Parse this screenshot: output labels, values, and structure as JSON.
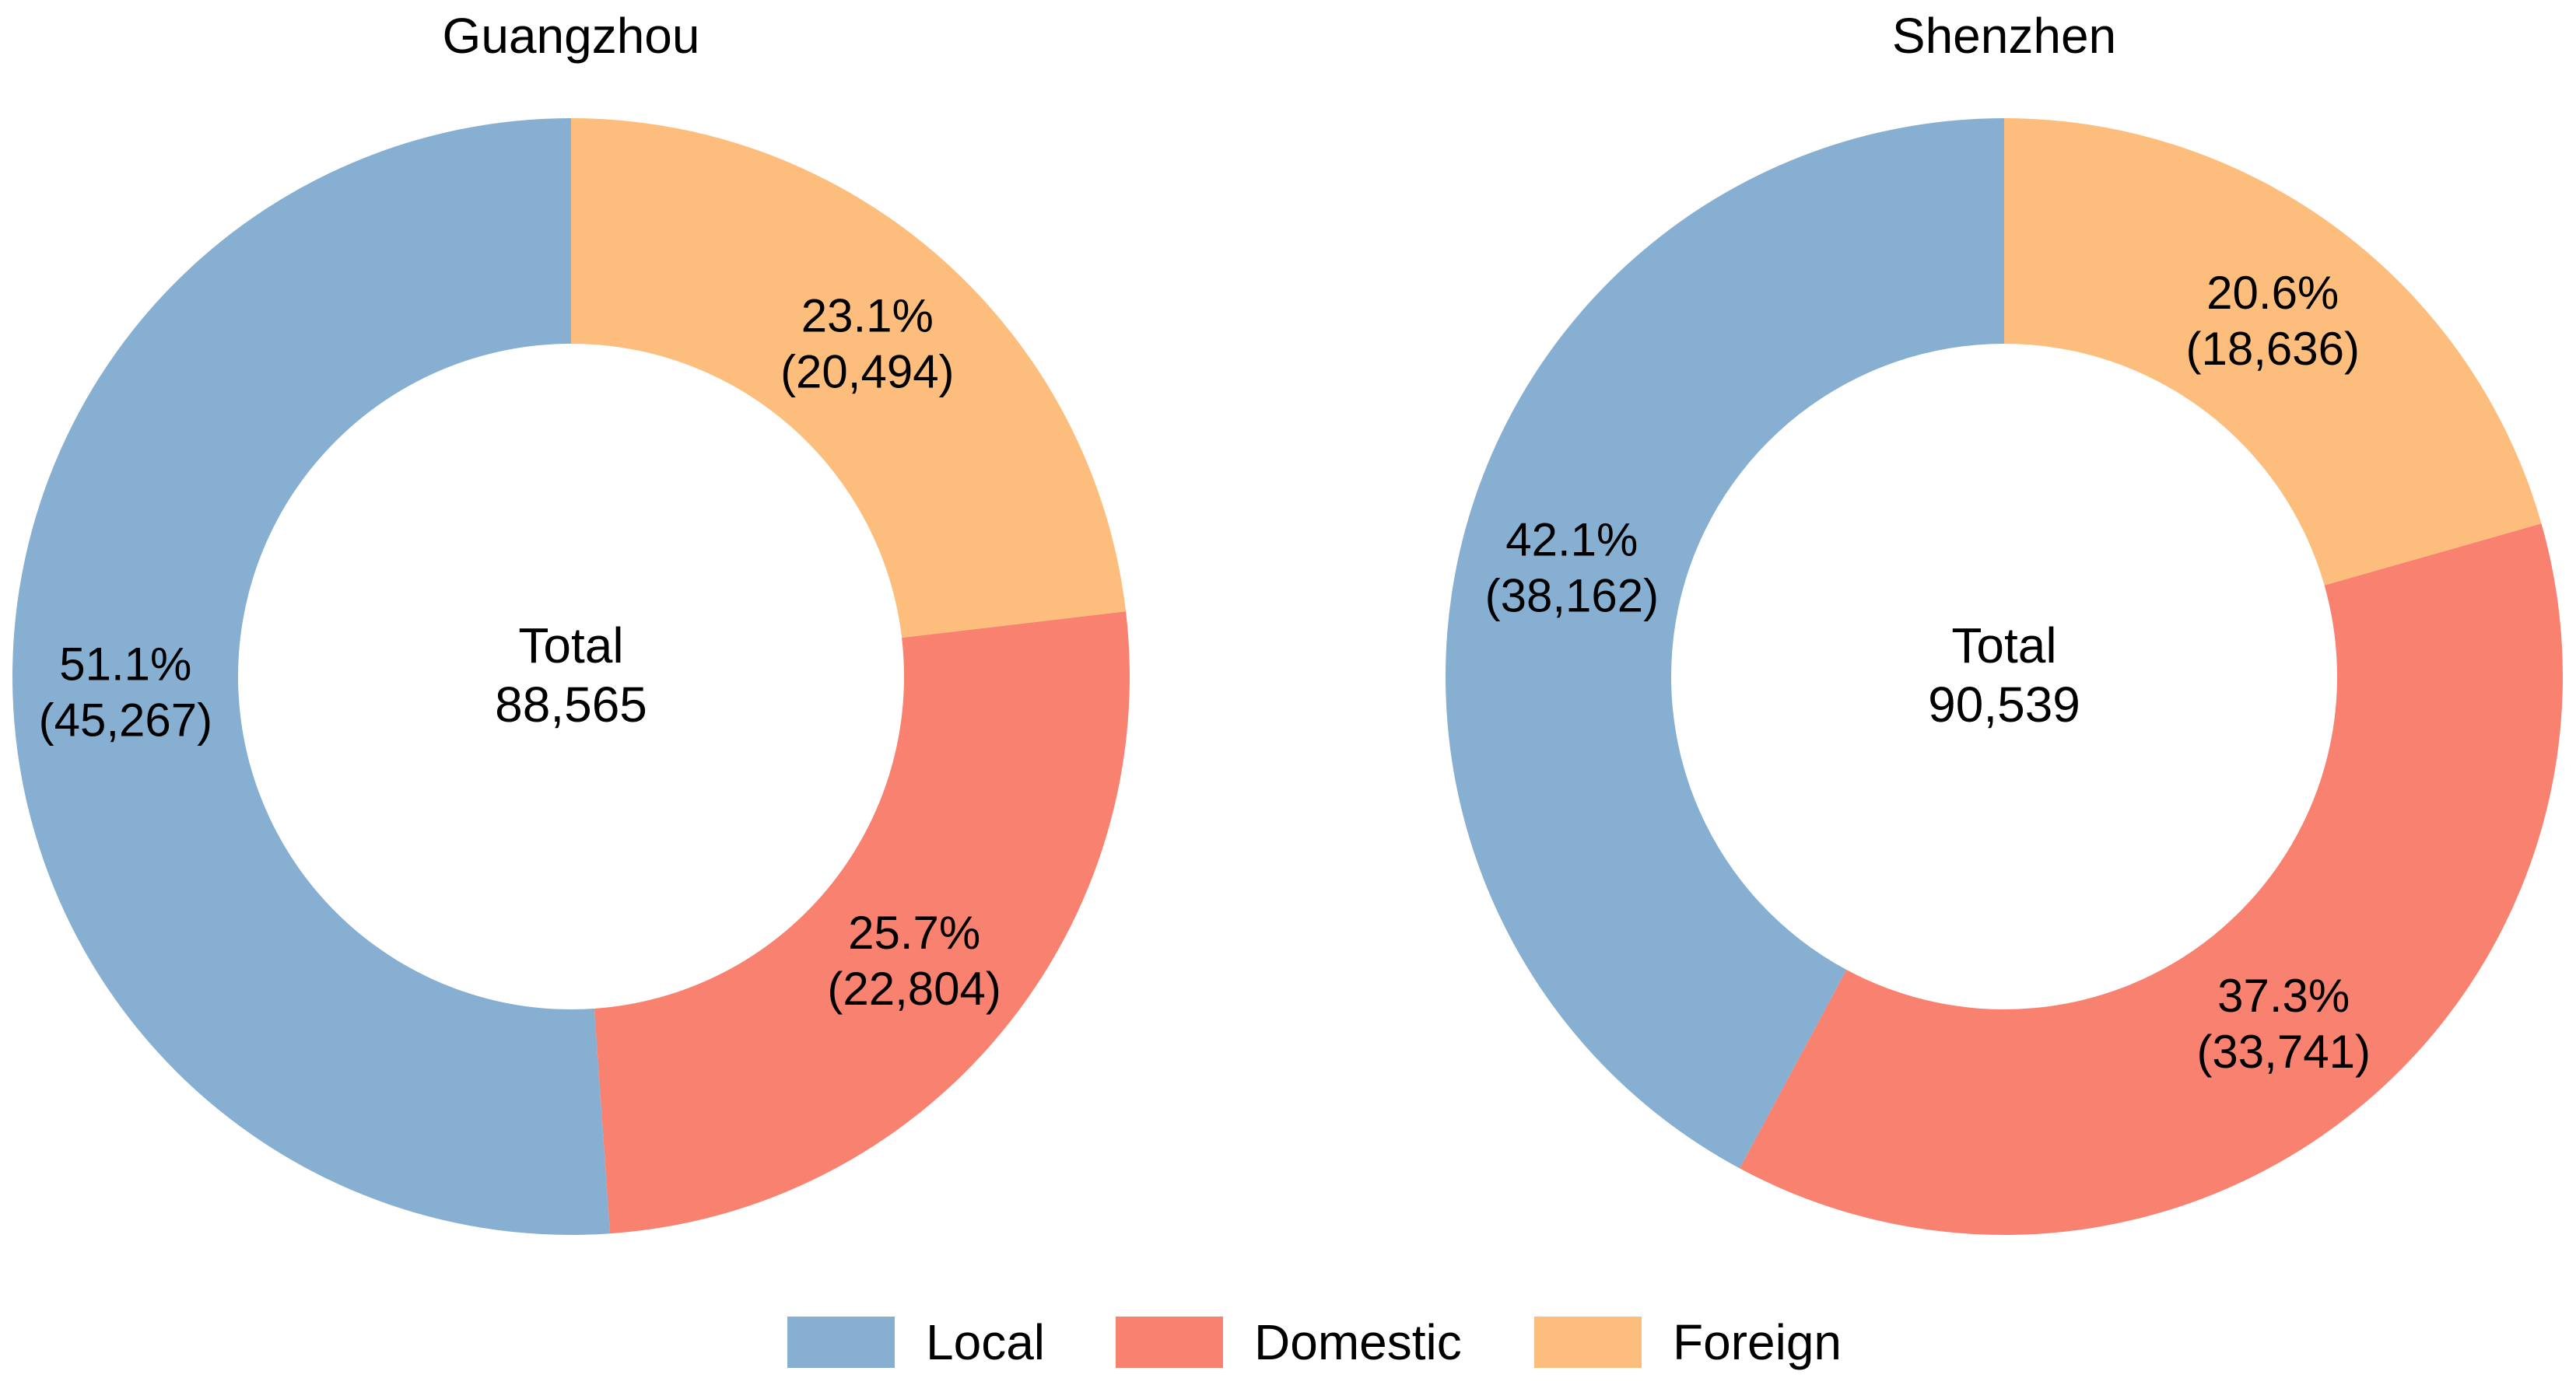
{
  "chart_data": [
    {
      "type": "pie",
      "title": "Guangzhou",
      "center_label": "Total",
      "total": "88,565",
      "slices": [
        {
          "name": "Local",
          "value": 45267,
          "value_label": "(45,267)",
          "percent_label": "51.1%"
        },
        {
          "name": "Domestic",
          "value": 22804,
          "value_label": "(22,804)",
          "percent_label": "25.7%"
        },
        {
          "name": "Foreign",
          "value": 20494,
          "value_label": "(20,494)",
          "percent_label": "23.1%"
        }
      ]
    },
    {
      "type": "pie",
      "title": "Shenzhen",
      "center_label": "Total",
      "total": "90,539",
      "slices": [
        {
          "name": "Local",
          "value": 38162,
          "value_label": "(38,162)",
          "percent_label": "42.1%"
        },
        {
          "name": "Domestic",
          "value": 33741,
          "value_label": "(33,741)",
          "percent_label": "37.3%"
        },
        {
          "name": "Foreign",
          "value": 18636,
          "value_label": "(18,636)",
          "percent_label": "20.6%"
        }
      ]
    }
  ],
  "legend": {
    "placement": "bottom-center",
    "items": [
      {
        "label": "Local",
        "color": "#86AFD2"
      },
      {
        "label": "Domestic",
        "color": "#F98170"
      },
      {
        "label": "Foreign",
        "color": "#FDBE7D"
      }
    ]
  },
  "colors": {
    "Local": "#86AFD2",
    "Domestic": "#F98170",
    "Foreign": "#FDBE7D"
  }
}
